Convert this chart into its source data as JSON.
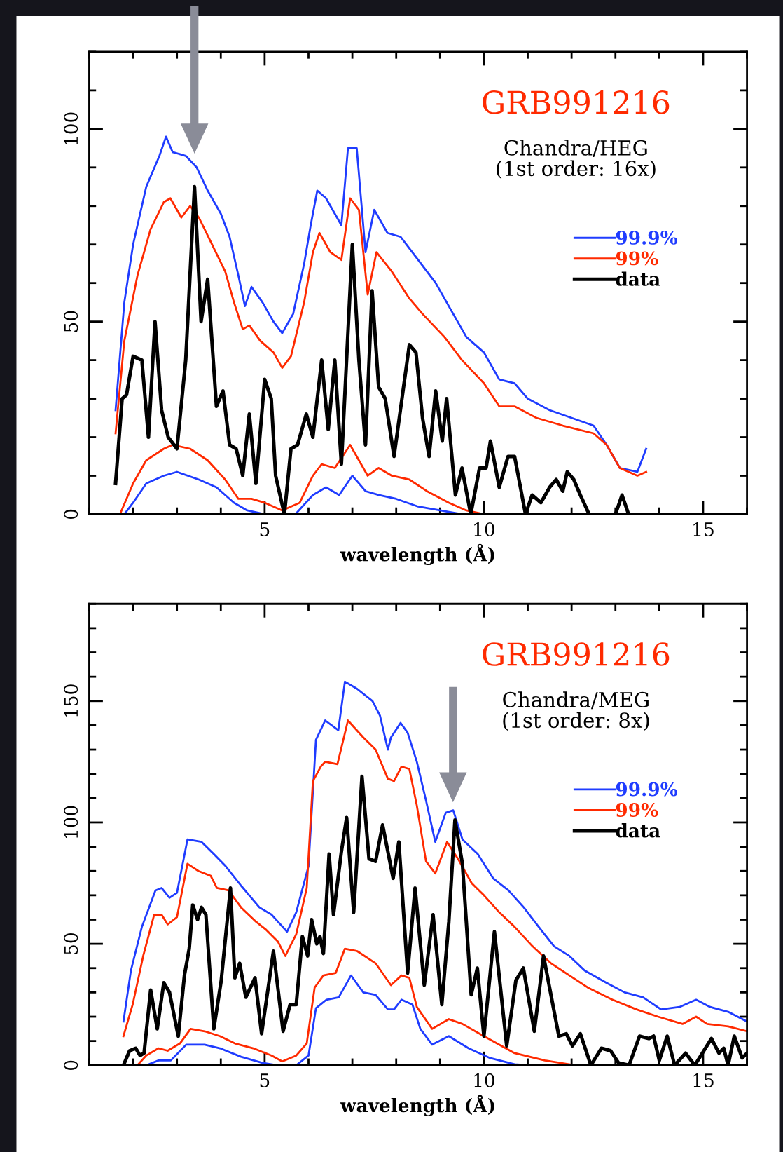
{
  "chart_data": [
    {
      "type": "line",
      "title": "GRB991216",
      "subtitle": "Chandra/HEG\n(1st order: 16x)",
      "xlabel": "wavelength (Å)",
      "xlim": [
        1,
        16
      ],
      "xticks": [
        5,
        10,
        15
      ],
      "ylim": [
        0,
        120
      ],
      "yticks": [
        0,
        50,
        100
      ],
      "legend": "right",
      "grid": false,
      "marker": "none",
      "line_style": "solid",
      "series": [
        {
          "name": "99.9%",
          "color": "#1f3cff",
          "x": [
            1.6,
            1.8,
            2.0,
            2.3,
            2.6,
            2.75,
            2.9,
            3.2,
            3.45,
            3.7,
            4.0,
            4.2,
            4.4,
            4.55,
            4.7,
            4.95,
            5.2,
            5.4,
            5.65,
            5.9,
            6.05,
            6.2,
            6.4,
            6.6,
            6.75,
            6.9,
            7.1,
            7.3,
            7.5,
            7.8,
            8.1,
            8.5,
            8.9,
            9.3,
            9.6,
            10.0,
            10.35,
            10.7,
            11.0,
            11.5,
            12.0,
            12.5,
            12.8,
            13.1,
            13.5,
            13.7
          ],
          "values": [
            27,
            55,
            70,
            85,
            93,
            98,
            94,
            93,
            90,
            84,
            78,
            72,
            62,
            54,
            59,
            55,
            50,
            47,
            52,
            65,
            75,
            84,
            82,
            78,
            75,
            95,
            95,
            68,
            79,
            73,
            72,
            66,
            60,
            52,
            46,
            42,
            35,
            34,
            30,
            27,
            25,
            23,
            18,
            12,
            11,
            17
          ]
        },
        {
          "name": "99%",
          "color": "#ff2a00",
          "x": [
            1.6,
            1.8,
            2.1,
            2.4,
            2.7,
            2.85,
            3.1,
            3.3,
            3.5,
            3.8,
            4.1,
            4.3,
            4.5,
            4.65,
            4.9,
            5.2,
            5.4,
            5.6,
            5.9,
            6.1,
            6.25,
            6.5,
            6.75,
            6.95,
            7.15,
            7.35,
            7.55,
            7.9,
            8.3,
            8.6,
            9.1,
            9.5,
            10.0,
            10.35,
            10.7,
            11.2,
            11.8,
            12.5,
            12.8,
            13.1,
            13.5,
            13.7
          ],
          "values": [
            21,
            45,
            62,
            74,
            81,
            82,
            77,
            80,
            77,
            70,
            63,
            55,
            48,
            49,
            45,
            42,
            38,
            41,
            55,
            68,
            73,
            68,
            66,
            82,
            79,
            57,
            68,
            63,
            56,
            52,
            46,
            40,
            34,
            28,
            28,
            25,
            23,
            21,
            18,
            12,
            10,
            11
          ]
        },
        {
          "name": "data",
          "color": "#000000",
          "x": [
            1.6,
            1.75,
            1.85,
            2.0,
            2.2,
            2.35,
            2.5,
            2.65,
            2.8,
            3.0,
            3.2,
            3.4,
            3.55,
            3.7,
            3.9,
            4.05,
            4.2,
            4.35,
            4.5,
            4.65,
            4.8,
            5.0,
            5.15,
            5.25,
            5.45,
            5.6,
            5.75,
            5.95,
            6.1,
            6.3,
            6.45,
            6.6,
            6.75,
            7.0,
            7.15,
            7.3,
            7.45,
            7.6,
            7.75,
            7.95,
            8.3,
            8.45,
            8.6,
            8.75,
            8.9,
            9.05,
            9.15,
            9.35,
            9.5,
            9.7,
            9.9,
            10.05,
            10.15,
            10.35,
            10.55,
            10.7,
            10.95,
            11.1,
            11.3,
            11.5,
            11.65,
            11.8,
            11.9,
            12.05,
            12.2,
            12.4,
            12.7,
            13.0,
            13.15,
            13.3,
            13.7
          ],
          "values": [
            8,
            30,
            31,
            41,
            40,
            20,
            50,
            27,
            20,
            17,
            40,
            85,
            50,
            61,
            28,
            32,
            18,
            17,
            10,
            26,
            8,
            35,
            30,
            10,
            0,
            17,
            18,
            26,
            20,
            40,
            22,
            40,
            13,
            70,
            40,
            18,
            58,
            33,
            30,
            15,
            44,
            42,
            25,
            15,
            32,
            19,
            30,
            5,
            12,
            0,
            12,
            12,
            19,
            7,
            15,
            15,
            0,
            5,
            3,
            7,
            9,
            6,
            11,
            9,
            5,
            0,
            0,
            0,
            5,
            0,
            0
          ]
        },
        {
          "color": "#ff2a00",
          "x": [
            1.7,
            2.0,
            2.3,
            2.7,
            2.9,
            3.3,
            3.7,
            4.1,
            4.4,
            4.7,
            5.0,
            5.4,
            5.8,
            6.1,
            6.3,
            6.6,
            6.95,
            7.2,
            7.35,
            7.6,
            7.9,
            8.3,
            8.7,
            9.2,
            9.6,
            10.0,
            13.7
          ],
          "values": [
            0,
            8,
            14,
            17,
            18,
            17,
            14,
            9,
            4,
            4,
            3,
            1,
            3,
            10,
            13,
            12,
            18,
            13,
            10,
            12,
            10,
            9,
            6,
            3,
            1,
            0,
            0
          ]
        },
        {
          "color": "#1f3cff",
          "x": [
            1.8,
            2.0,
            2.3,
            2.7,
            3.0,
            3.5,
            3.9,
            4.3,
            4.6,
            5.0,
            5.7,
            6.1,
            6.4,
            6.7,
            7.0,
            7.3,
            7.6,
            8.0,
            8.5,
            9.0,
            9.5,
            13.8
          ],
          "values": [
            0,
            3,
            8,
            10,
            11,
            9,
            7,
            3,
            1,
            0,
            0,
            5,
            7,
            5,
            10,
            6,
            5,
            4,
            2,
            1,
            0,
            0
          ]
        }
      ]
    },
    {
      "type": "line",
      "title": "GRB991216",
      "subtitle": "Chandra/MEG\n(1st order: 8x)",
      "xlabel": "wavelength (Å)",
      "xlim": [
        1,
        16
      ],
      "xticks": [
        5,
        10,
        15
      ],
      "ylim": [
        0,
        190
      ],
      "yticks": [
        0,
        50,
        100,
        150
      ],
      "legend": "right",
      "grid": false,
      "marker": "none",
      "line_style": "solid",
      "series": [
        {
          "name": "99.9%",
          "color": "#1f3cff",
          "x": [
            1.78,
            1.95,
            2.2,
            2.51,
            2.65,
            2.83,
            3.0,
            3.24,
            3.56,
            3.84,
            4.11,
            4.46,
            4.88,
            5.16,
            5.51,
            5.72,
            6.0,
            6.17,
            6.38,
            6.68,
            6.83,
            7.11,
            7.46,
            7.63,
            7.81,
            7.88,
            8.1,
            8.26,
            8.47,
            8.68,
            8.89,
            9.13,
            9.3,
            9.51,
            9.86,
            10.21,
            10.56,
            10.91,
            11.25,
            11.6,
            11.95,
            12.3,
            12.79,
            13.21,
            13.63,
            14.04,
            14.46,
            14.84,
            15.16,
            15.57,
            16.0
          ],
          "values": [
            18,
            39,
            57,
            72,
            73,
            69,
            71,
            93,
            92,
            87,
            82,
            74,
            65,
            62,
            55,
            63,
            82,
            134,
            142,
            138,
            158,
            155,
            150,
            144,
            130,
            135,
            141,
            137,
            125,
            109,
            92,
            104,
            105,
            93,
            87,
            77,
            72,
            65,
            57,
            49,
            45,
            39,
            34,
            30,
            28,
            23,
            24,
            27,
            24,
            22,
            18
          ]
        },
        {
          "name": "99%",
          "color": "#ff2a00",
          "x": [
            1.78,
            1.99,
            2.23,
            2.48,
            2.65,
            2.79,
            3.0,
            3.24,
            3.49,
            3.77,
            3.91,
            4.18,
            4.46,
            4.81,
            5.02,
            5.3,
            5.47,
            5.72,
            5.96,
            6.1,
            6.28,
            6.38,
            6.66,
            6.9,
            7.25,
            7.53,
            7.81,
            7.95,
            8.12,
            8.3,
            8.47,
            8.68,
            8.89,
            9.16,
            9.41,
            9.72,
            10.0,
            10.35,
            10.7,
            11.11,
            11.53,
            11.95,
            12.37,
            12.93,
            13.48,
            13.97,
            14.53,
            14.84,
            15.09,
            15.57,
            16.0
          ],
          "values": [
            12,
            25,
            45,
            62,
            62,
            58,
            61,
            83,
            80,
            78,
            73,
            72,
            65,
            59,
            56,
            51,
            45,
            54,
            73,
            117,
            123,
            125,
            124,
            142,
            135,
            130,
            118,
            117,
            123,
            122,
            107,
            84,
            79,
            92,
            85,
            75,
            70,
            63,
            57,
            49,
            42,
            37,
            32,
            27,
            23,
            20,
            17,
            20,
            17,
            16,
            14
          ]
        },
        {
          "name": "data",
          "color": "#000000",
          "x": [
            1.78,
            1.92,
            2.06,
            2.16,
            2.25,
            2.4,
            2.55,
            2.7,
            2.83,
            3.03,
            3.17,
            3.28,
            3.36,
            3.47,
            3.56,
            3.66,
            3.84,
            4.01,
            4.22,
            4.32,
            4.43,
            4.57,
            4.78,
            4.93,
            5.2,
            5.42,
            5.58,
            5.72,
            5.86,
            5.98,
            6.07,
            6.19,
            6.26,
            6.34,
            6.47,
            6.57,
            6.75,
            6.87,
            7.03,
            7.22,
            7.38,
            7.53,
            7.69,
            7.81,
            7.93,
            8.06,
            8.26,
            8.43,
            8.64,
            8.84,
            9.04,
            9.2,
            9.34,
            9.51,
            9.71,
            9.85,
            10.0,
            10.24,
            10.52,
            10.73,
            10.9,
            11.15,
            11.36,
            11.71,
            11.88,
            12.02,
            12.2,
            12.44,
            12.68,
            12.89,
            13.07,
            13.31,
            13.55,
            13.76,
            13.87,
            14.0,
            14.18,
            14.35,
            14.6,
            14.81,
            15.19,
            15.36,
            15.47,
            15.57,
            15.71,
            15.89,
            16.0
          ],
          "values": [
            0,
            6,
            7,
            4,
            5,
            31,
            15,
            34,
            30,
            12,
            37,
            48,
            66,
            60,
            65,
            62,
            15,
            35,
            73,
            36,
            42,
            28,
            36,
            13,
            47,
            14,
            25,
            25,
            53,
            45,
            60,
            50,
            53,
            46,
            87,
            62,
            88,
            102,
            63,
            119,
            85,
            84,
            99,
            88,
            77,
            92,
            38,
            73,
            33,
            62,
            25,
            59,
            101,
            83,
            29,
            40,
            12,
            55,
            8,
            35,
            40,
            14,
            45,
            12,
            13,
            8,
            13,
            0,
            7,
            6,
            1,
            0,
            12,
            11,
            12,
            2,
            12,
            0,
            5,
            0,
            11,
            5,
            7,
            0,
            12,
            3,
            5
          ]
        },
        {
          "color": "#ff2a00",
          "x": [
            2.1,
            2.3,
            2.58,
            2.79,
            3.07,
            3.31,
            3.63,
            3.98,
            4.32,
            4.74,
            5.16,
            5.4,
            5.72,
            5.96,
            6.14,
            6.34,
            6.62,
            6.83,
            7.11,
            7.53,
            7.88,
            8.12,
            8.3,
            8.47,
            8.82,
            9.2,
            9.51,
            10.0,
            10.7,
            11.39,
            12.09,
            16.0
          ],
          "values": [
            0,
            4,
            7,
            6,
            9,
            15,
            14,
            12,
            9,
            7,
            4,
            1.6,
            4,
            9,
            32,
            37,
            38,
            48,
            47,
            42,
            33,
            37,
            36,
            24,
            15,
            19,
            17,
            12,
            5,
            2,
            0,
            0
          ]
        },
        {
          "color": "#1f3cff",
          "x": [
            2.3,
            2.58,
            2.86,
            3.21,
            3.63,
            3.98,
            4.46,
            4.95,
            5.3,
            5.72,
            6.0,
            6.17,
            6.41,
            6.69,
            6.97,
            7.25,
            7.53,
            7.81,
            7.95,
            8.12,
            8.37,
            8.55,
            8.82,
            9.2,
            9.65,
            10.14,
            10.7,
            11.05,
            16.0
          ],
          "values": [
            0,
            2,
            2,
            8.5,
            8.5,
            7,
            3.5,
            1,
            0,
            0,
            4,
            23.5,
            27,
            28,
            37,
            30,
            29,
            23,
            23,
            27,
            25,
            15,
            8.5,
            12,
            7,
            3,
            0.4,
            0,
            0
          ]
        }
      ]
    }
  ]
}
